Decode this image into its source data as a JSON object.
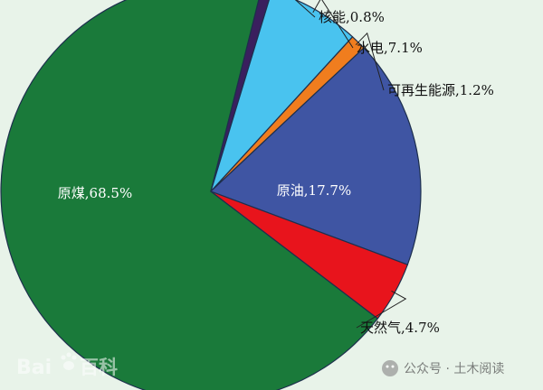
{
  "chart_data": {
    "type": "pie",
    "slices": [
      {
        "label": "原煤,68.5%",
        "name": "原煤",
        "value": 68.5,
        "color": "#1a7a3a",
        "label_color": "#ffffff"
      },
      {
        "label": "核能,0.8%",
        "name": "核能",
        "value": 0.8,
        "color": "#3a1f5e",
        "label_color": "#111111"
      },
      {
        "label": "水电,7.1%",
        "name": "水电",
        "value": 7.1,
        "color": "#49c3ef",
        "label_color": "#111111"
      },
      {
        "label": "可再生能源,1.2%",
        "name": "可再生能源",
        "value": 1.2,
        "color": "#f07d1e",
        "label_color": "#111111"
      },
      {
        "label": "原油,17.7%",
        "name": "原油",
        "value": 17.7,
        "color": "#3f55a3",
        "label_color": "#ffffff"
      },
      {
        "label": "天然气,4.7%",
        "name": "天然气",
        "value": 4.7,
        "color": "#e8141c",
        "label_color": "#111111"
      }
    ],
    "start_angle_deg": 8,
    "direction": "clockwise"
  },
  "watermarks": {
    "baidu_text": "Bai",
    "baidu_text2": "百科",
    "wechat_text": "公众号 · 土木阅读"
  }
}
